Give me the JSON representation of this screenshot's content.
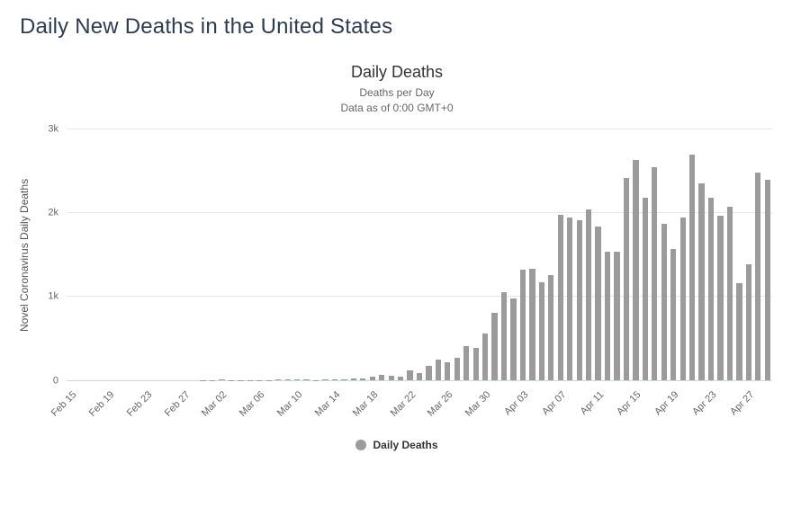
{
  "page": {
    "heading": "Daily New Deaths in the United States"
  },
  "colors": {
    "heading": "#2e3c50",
    "title": "#333333",
    "subtitle": "#666666",
    "axis_title": "#555555",
    "axis_label": "#666666",
    "gridline": "#e6e6e6",
    "axis_line": "#ccd6eb",
    "bar": "#9b9b9b",
    "legend_text": "#333333"
  },
  "chart_data": {
    "type": "bar",
    "title": "Daily Deaths",
    "subtitle": "Deaths per Day",
    "subtitle2": "Data as of 0:00 GMT+0",
    "xlabel": "",
    "ylabel": "Novel Coronavirus Daily Deaths",
    "ylim": [
      0,
      3000
    ],
    "yticks": [
      {
        "value": 0,
        "label": "0"
      },
      {
        "value": 1000,
        "label": "1k"
      },
      {
        "value": 2000,
        "label": "2k"
      },
      {
        "value": 3000,
        "label": "3k"
      }
    ],
    "x_tick_interval": 4,
    "x_tick_labels_shown": [
      "Feb 15",
      "Feb 19",
      "Feb 23",
      "Feb 27",
      "Mar 02",
      "Mar 06",
      "Mar 10",
      "Mar 14",
      "Mar 18",
      "Mar 22",
      "Mar 26",
      "Mar 30",
      "Apr 03",
      "Apr 07",
      "Apr 11",
      "Apr 15",
      "Apr 19",
      "Apr 23",
      "Apr 27"
    ],
    "legend": [
      "Daily Deaths"
    ],
    "legend_position": "bottom",
    "grid": true,
    "categories": [
      "Feb 15",
      "Feb 16",
      "Feb 17",
      "Feb 18",
      "Feb 19",
      "Feb 20",
      "Feb 21",
      "Feb 22",
      "Feb 23",
      "Feb 24",
      "Feb 25",
      "Feb 26",
      "Feb 27",
      "Feb 28",
      "Feb 29",
      "Mar 01",
      "Mar 02",
      "Mar 03",
      "Mar 04",
      "Mar 05",
      "Mar 06",
      "Mar 07",
      "Mar 08",
      "Mar 09",
      "Mar 10",
      "Mar 11",
      "Mar 12",
      "Mar 13",
      "Mar 14",
      "Mar 15",
      "Mar 16",
      "Mar 17",
      "Mar 18",
      "Mar 19",
      "Mar 20",
      "Mar 21",
      "Mar 22",
      "Mar 23",
      "Mar 24",
      "Mar 25",
      "Mar 26",
      "Mar 27",
      "Mar 28",
      "Mar 29",
      "Mar 30",
      "Mar 31",
      "Apr 01",
      "Apr 02",
      "Apr 03",
      "Apr 04",
      "Apr 05",
      "Apr 06",
      "Apr 07",
      "Apr 08",
      "Apr 09",
      "Apr 10",
      "Apr 11",
      "Apr 12",
      "Apr 13",
      "Apr 14",
      "Apr 15",
      "Apr 16",
      "Apr 17",
      "Apr 18",
      "Apr 19",
      "Apr 20",
      "Apr 21",
      "Apr 22",
      "Apr 23",
      "Apr 24",
      "Apr 25",
      "Apr 26",
      "Apr 27",
      "Apr 28",
      "Apr 29"
    ],
    "values": [
      0,
      0,
      0,
      0,
      0,
      0,
      0,
      0,
      0,
      0,
      0,
      0,
      0,
      0,
      1,
      1,
      5,
      3,
      2,
      1,
      3,
      2,
      4,
      4,
      4,
      8,
      3,
      9,
      11,
      11,
      18,
      23,
      41,
      57,
      49,
      46,
      111,
      80,
      164,
      247,
      217,
      268,
      400,
      386,
      558,
      800,
      1049,
      968,
      1321,
      1331,
      1165,
      1255,
      1970,
      1940,
      1900,
      2035,
      1830,
      1528,
      1535,
      2407,
      2621,
      2174,
      2538,
      1867,
      1561,
      1939,
      2683,
      2341,
      2173,
      1957,
      2065,
      1157,
      1384,
      2470,
      2390
    ]
  }
}
